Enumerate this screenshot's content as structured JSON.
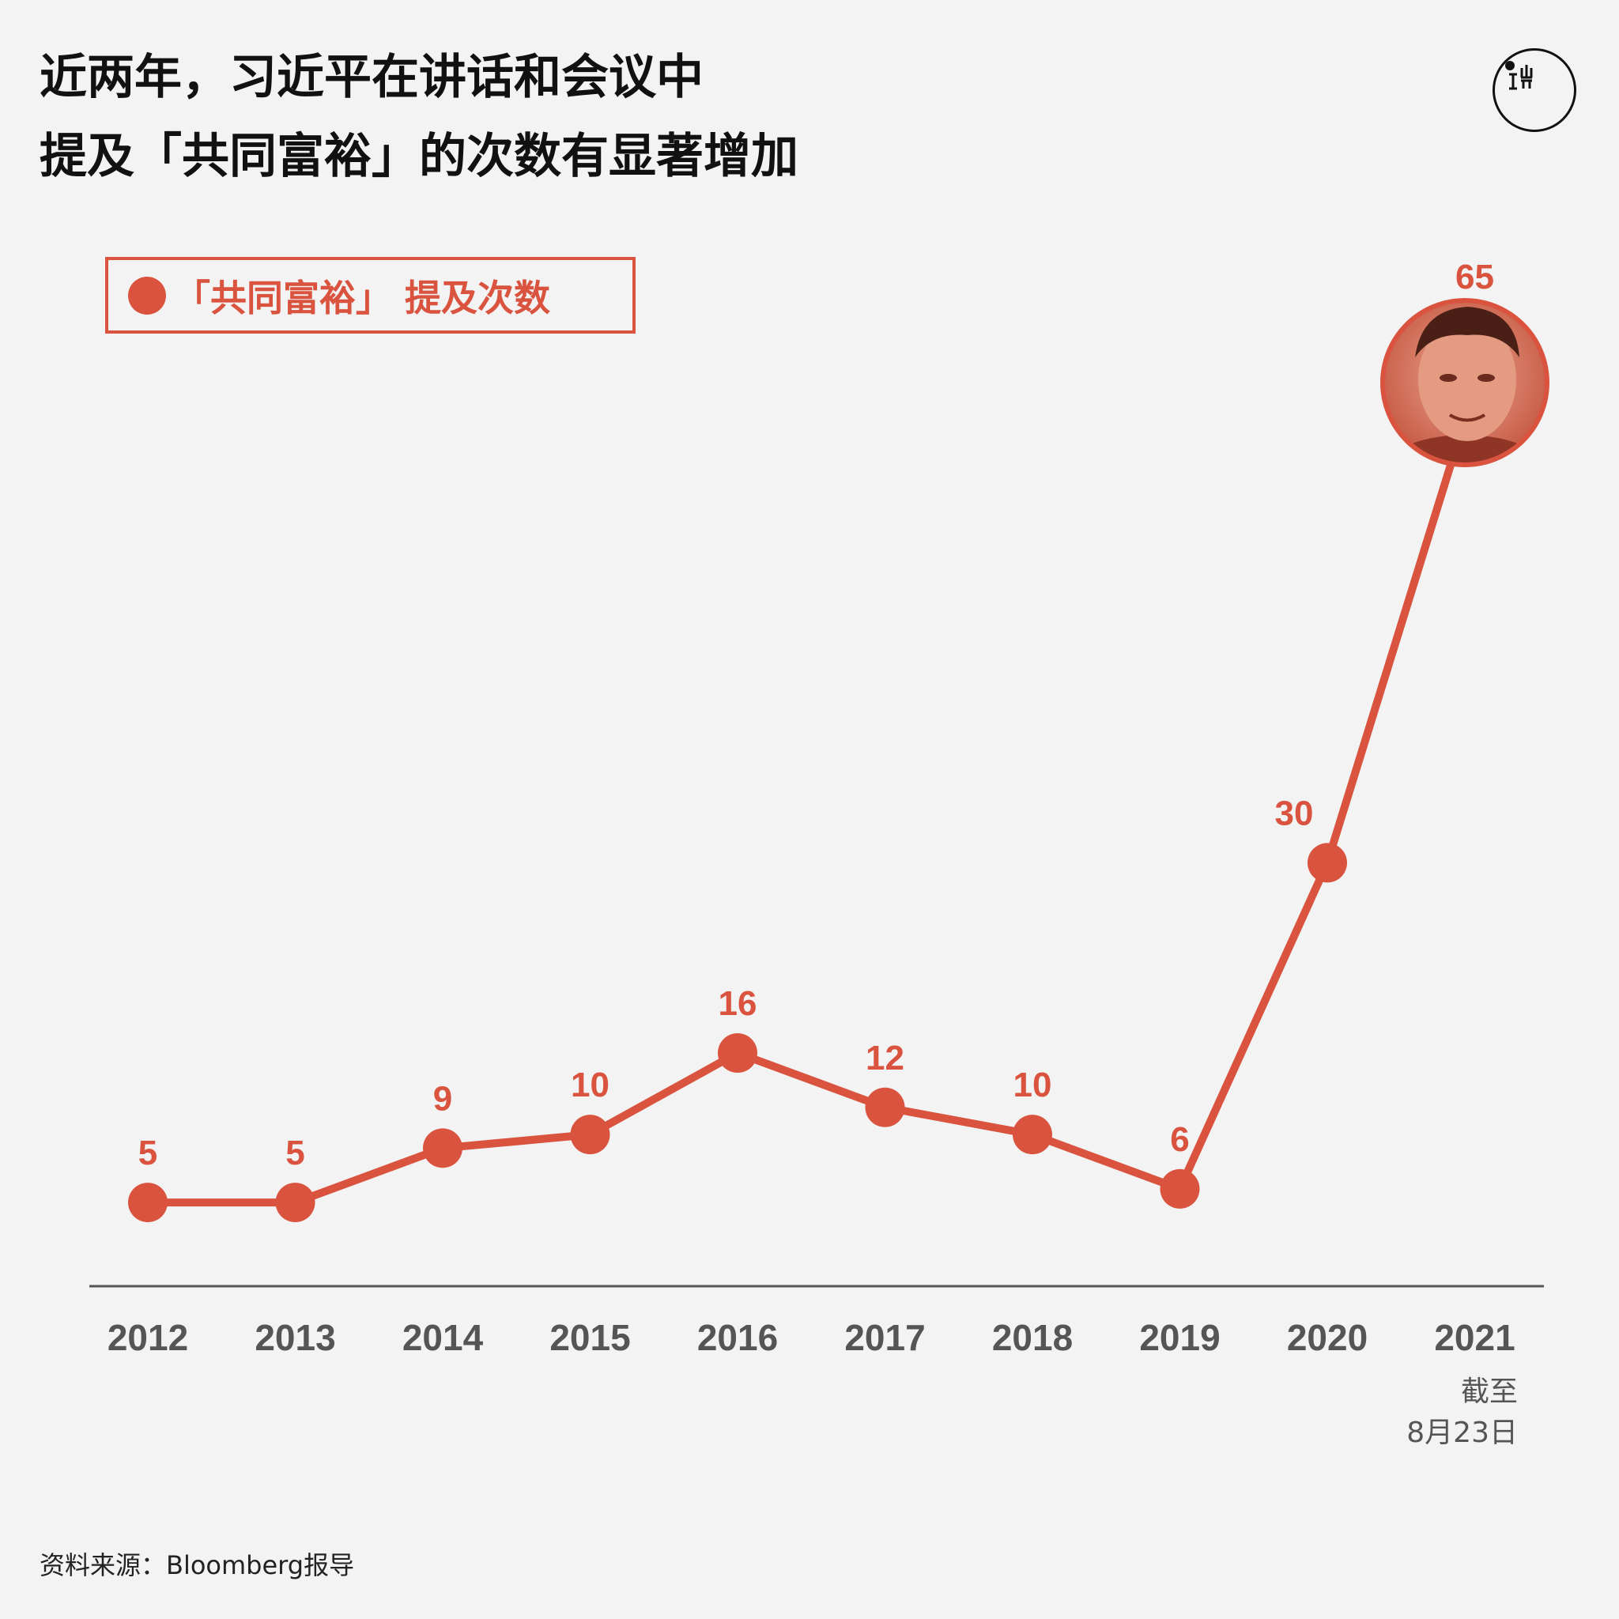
{
  "title": {
    "line1": "近两年，习近平在讲话和会议中",
    "line2": "提及「共同富裕」的次数有显著增加"
  },
  "legend": {
    "label": "「共同富裕」 提及次数"
  },
  "logo": {
    "icon": "theinitium-logo"
  },
  "colors": {
    "accent": "#d9533f",
    "axis": "#555555",
    "background": "#f3f3f3"
  },
  "chart_data": {
    "type": "line",
    "categories": [
      "2012",
      "2013",
      "2014",
      "2015",
      "2016",
      "2017",
      "2018",
      "2019",
      "2020",
      "2021"
    ],
    "series": [
      {
        "name": "「共同富裕」 提及次数",
        "values": [
          5,
          5,
          9,
          10,
          16,
          12,
          10,
          6,
          30,
          65
        ]
      }
    ],
    "data_labels": [
      "5",
      "5",
      "9",
      "10",
      "16",
      "12",
      "10",
      "6",
      "30",
      "65"
    ],
    "ylim": [
      0,
      70
    ],
    "grid": false,
    "legend_position": "top-left",
    "last_point_marker": "portrait-photo"
  },
  "axis_note": {
    "line1": "截至",
    "line2": "8月23日"
  },
  "source": "资料来源：Bloomberg报导"
}
